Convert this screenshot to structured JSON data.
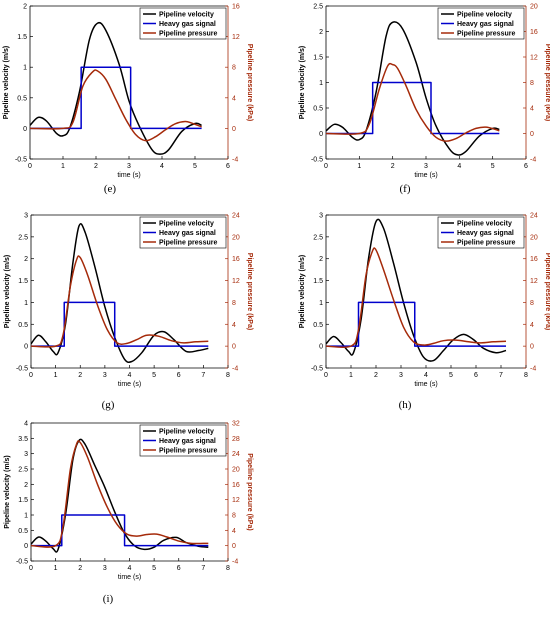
{
  "figure": {
    "colors": {
      "velocity": "#000000",
      "signal": "#0000cc",
      "pressure": "#a52a0a"
    },
    "common": {
      "xlabel": "time (s)",
      "ylabel_left": "Pipeline velocity (m/s)",
      "ylabel_right": "Pipeline pressure (kPa)",
      "legend": [
        "Pipeline velocity",
        "Heavy gas signal",
        "Pipeline pressure"
      ]
    }
  },
  "chart_data": [
    {
      "type": "line",
      "panel_label": "(e)",
      "legend_position": "top-right",
      "xlim": [
        0,
        6
      ],
      "xticks": [
        0,
        1,
        2,
        3,
        4,
        5,
        6
      ],
      "ylim_left": [
        -0.5,
        2
      ],
      "yticks_left": [
        -0.5,
        0,
        0.5,
        1,
        1.5,
        2
      ],
      "ylim_right": [
        -4,
        16
      ],
      "yticks_right": [
        -4,
        0,
        4,
        8,
        12,
        16
      ],
      "series": [
        {
          "name": "Pipeline velocity",
          "axis": "left",
          "x": [
            0,
            0.25,
            0.5,
            0.8,
            1.0,
            1.2,
            1.5,
            1.8,
            2.05,
            2.3,
            2.7,
            3.0,
            3.3,
            3.7,
            3.95,
            4.2,
            4.6,
            5.0,
            5.2
          ],
          "y": [
            0.05,
            0.18,
            0.12,
            -0.08,
            -0.12,
            0.0,
            0.6,
            1.45,
            1.72,
            1.6,
            1.05,
            0.45,
            0.05,
            -0.35,
            -0.42,
            -0.35,
            -0.05,
            0.08,
            0.05
          ]
        },
        {
          "name": "Heavy gas signal",
          "axis": "left",
          "x": [
            0,
            1.55,
            1.55,
            3.05,
            3.05,
            5.2
          ],
          "y": [
            0,
            0,
            1,
            1,
            0,
            0
          ]
        },
        {
          "name": "Pipeline pressure",
          "axis": "right",
          "x": [
            0,
            1.0,
            1.3,
            1.6,
            1.9,
            2.05,
            2.3,
            2.6,
            2.9,
            3.2,
            3.5,
            3.8,
            4.1,
            4.4,
            4.7,
            4.9,
            5.2
          ],
          "y": [
            0,
            0,
            0.8,
            5.5,
            7.4,
            7.5,
            6.4,
            3.8,
            1.2,
            -0.8,
            -1.6,
            -1.1,
            -0.2,
            0.6,
            0.9,
            0.7,
            0.2
          ]
        }
      ]
    },
    {
      "type": "line",
      "panel_label": "(f)",
      "legend_position": "top-right",
      "xlim": [
        0,
        6
      ],
      "xticks": [
        0,
        1,
        2,
        3,
        4,
        5,
        6
      ],
      "ylim_left": [
        -0.5,
        2.5
      ],
      "yticks_left": [
        -0.5,
        0,
        0.5,
        1,
        1.5,
        2,
        2.5
      ],
      "ylim_right": [
        -4,
        20
      ],
      "yticks_right": [
        -4,
        0,
        4,
        8,
        12,
        16,
        20
      ],
      "series": [
        {
          "name": "Pipeline velocity",
          "axis": "left",
          "x": [
            0,
            0.25,
            0.5,
            0.8,
            1.0,
            1.2,
            1.5,
            1.8,
            2.0,
            2.3,
            2.7,
            3.0,
            3.3,
            3.7,
            3.95,
            4.2,
            4.6,
            5.0,
            5.2
          ],
          "y": [
            0.05,
            0.18,
            0.12,
            -0.08,
            -0.12,
            0.05,
            0.8,
            1.9,
            2.18,
            2.05,
            1.4,
            0.7,
            0.15,
            -0.3,
            -0.42,
            -0.35,
            -0.05,
            0.1,
            0.08
          ]
        },
        {
          "name": "Heavy gas signal",
          "axis": "left",
          "x": [
            0,
            1.4,
            1.4,
            3.15,
            3.15,
            5.2
          ],
          "y": [
            0,
            0,
            1,
            1,
            0,
            0
          ]
        },
        {
          "name": "Pipeline pressure",
          "axis": "right",
          "x": [
            0,
            1.0,
            1.3,
            1.6,
            1.85,
            2.0,
            2.15,
            2.4,
            2.7,
            3.0,
            3.3,
            3.6,
            3.9,
            4.2,
            4.5,
            4.8,
            5.1,
            5.2
          ],
          "y": [
            0,
            0,
            1.5,
            7.0,
            10.6,
            10.8,
            10.2,
            7.5,
            3.8,
            1.2,
            -0.6,
            -1.2,
            -0.8,
            0.1,
            0.8,
            1.0,
            0.6,
            0.4
          ]
        }
      ]
    },
    {
      "type": "line",
      "panel_label": "(g)",
      "legend_position": "top-right",
      "xlim": [
        0,
        8
      ],
      "xticks": [
        0,
        1,
        2,
        3,
        4,
        5,
        6,
        7,
        8
      ],
      "ylim_left": [
        -0.5,
        3
      ],
      "yticks_left": [
        -0.5,
        0,
        0.5,
        1,
        1.5,
        2,
        2.5,
        3
      ],
      "ylim_right": [
        -4,
        24
      ],
      "yticks_right": [
        -4,
        0,
        4,
        8,
        12,
        16,
        20,
        24
      ],
      "series": [
        {
          "name": "Pipeline velocity",
          "axis": "left",
          "x": [
            0,
            0.3,
            0.6,
            0.9,
            1.1,
            1.4,
            1.7,
            1.95,
            2.2,
            2.6,
            3.0,
            3.4,
            3.8,
            4.1,
            4.5,
            5.0,
            5.4,
            5.8,
            6.3,
            6.8,
            7.2
          ],
          "y": [
            0.05,
            0.25,
            0.1,
            -0.12,
            -0.15,
            0.5,
            1.9,
            2.75,
            2.6,
            1.8,
            0.9,
            0.2,
            -0.3,
            -0.35,
            -0.15,
            0.25,
            0.33,
            0.15,
            -0.12,
            -0.1,
            -0.05
          ]
        },
        {
          "name": "Heavy gas signal",
          "axis": "left",
          "x": [
            0,
            1.35,
            1.35,
            3.4,
            3.4,
            7.2
          ],
          "y": [
            0,
            0,
            1,
            1,
            0,
            0
          ]
        },
        {
          "name": "Pipeline pressure",
          "axis": "right",
          "x": [
            0,
            1.0,
            1.3,
            1.6,
            1.85,
            2.0,
            2.3,
            2.7,
            3.1,
            3.5,
            3.9,
            4.3,
            4.7,
            5.2,
            5.7,
            6.2,
            6.7,
            7.2
          ],
          "y": [
            0,
            0,
            2.0,
            11.0,
            15.8,
            16.2,
            13.0,
            7.5,
            3.0,
            0.6,
            0.5,
            1.2,
            2.0,
            1.8,
            1.0,
            0.6,
            0.8,
            0.9
          ]
        }
      ]
    },
    {
      "type": "line",
      "panel_label": "(h)",
      "legend_position": "top-right",
      "xlim": [
        0,
        8
      ],
      "xticks": [
        0,
        1,
        2,
        3,
        4,
        5,
        6,
        7,
        8
      ],
      "ylim_left": [
        -0.5,
        3
      ],
      "yticks_left": [
        -0.5,
        0,
        0.5,
        1,
        1.5,
        2,
        2.5,
        3
      ],
      "ylim_right": [
        -4,
        24
      ],
      "yticks_right": [
        -4,
        0,
        4,
        8,
        12,
        16,
        20,
        24
      ],
      "series": [
        {
          "name": "Pipeline velocity",
          "axis": "left",
          "x": [
            0,
            0.3,
            0.6,
            0.9,
            1.1,
            1.4,
            1.7,
            2.0,
            2.3,
            2.7,
            3.1,
            3.5,
            3.9,
            4.3,
            4.7,
            5.1,
            5.5,
            5.9,
            6.3,
            6.8,
            7.2
          ],
          "y": [
            0.05,
            0.22,
            0.08,
            -0.12,
            -0.15,
            0.6,
            2.0,
            2.85,
            2.7,
            1.9,
            1.0,
            0.25,
            -0.25,
            -0.33,
            -0.1,
            0.15,
            0.27,
            0.15,
            -0.05,
            -0.15,
            -0.1
          ]
        },
        {
          "name": "Heavy gas signal",
          "axis": "left",
          "x": [
            0,
            1.3,
            1.3,
            3.55,
            3.55,
            7.2
          ],
          "y": [
            0,
            0,
            1,
            1,
            0,
            0
          ]
        },
        {
          "name": "Pipeline pressure",
          "axis": "right",
          "x": [
            0,
            1.0,
            1.3,
            1.6,
            1.85,
            2.0,
            2.3,
            2.7,
            3.1,
            3.5,
            3.9,
            4.3,
            4.7,
            5.2,
            5.7,
            6.2,
            6.7,
            7.2
          ],
          "y": [
            0,
            0,
            3.0,
            13.0,
            17.3,
            17.6,
            14.0,
            8.5,
            3.5,
            0.8,
            0.2,
            0.5,
            1.0,
            1.1,
            0.8,
            0.6,
            0.8,
            0.9
          ]
        }
      ]
    },
    {
      "type": "line",
      "panel_label": "(i)",
      "legend_position": "top-right",
      "xlim": [
        0,
        8
      ],
      "xticks": [
        0,
        1,
        2,
        3,
        4,
        5,
        6,
        7,
        8
      ],
      "ylim_left": [
        -0.5,
        4
      ],
      "yticks_left": [
        -0.5,
        0,
        0.5,
        1,
        1.5,
        2,
        2.5,
        3,
        3.5,
        4
      ],
      "ylim_right": [
        -4,
        32
      ],
      "yticks_right": [
        -4,
        0,
        4,
        8,
        12,
        16,
        20,
        24,
        28,
        32
      ],
      "series": [
        {
          "name": "Pipeline velocity",
          "axis": "left",
          "x": [
            0,
            0.3,
            0.6,
            0.9,
            1.1,
            1.4,
            1.7,
            1.95,
            2.2,
            2.6,
            3.0,
            3.4,
            3.8,
            4.2,
            4.6,
            5.0,
            5.4,
            5.9,
            6.3,
            6.8,
            7.2
          ],
          "y": [
            0.05,
            0.28,
            0.15,
            -0.1,
            -0.12,
            1.0,
            2.8,
            3.43,
            3.3,
            2.6,
            1.9,
            1.1,
            0.4,
            0.0,
            -0.12,
            -0.05,
            0.18,
            0.27,
            0.1,
            -0.02,
            -0.05
          ]
        },
        {
          "name": "Heavy gas signal",
          "axis": "left",
          "x": [
            0,
            1.25,
            1.25,
            3.8,
            3.8,
            7.2
          ],
          "y": [
            0,
            0,
            1,
            1,
            0,
            0
          ]
        },
        {
          "name": "Pipeline pressure",
          "axis": "right",
          "x": [
            0,
            1.0,
            1.3,
            1.6,
            1.85,
            2.0,
            2.3,
            2.7,
            3.1,
            3.5,
            3.9,
            4.3,
            4.7,
            5.1,
            5.5,
            6.0,
            6.5,
            7.0,
            7.2
          ],
          "y": [
            0,
            0,
            5.0,
            20.0,
            26.5,
            26.9,
            23.0,
            16.0,
            10.0,
            5.5,
            3.0,
            2.5,
            2.9,
            3.0,
            2.3,
            1.2,
            0.6,
            0.6,
            0.6
          ]
        }
      ]
    }
  ]
}
